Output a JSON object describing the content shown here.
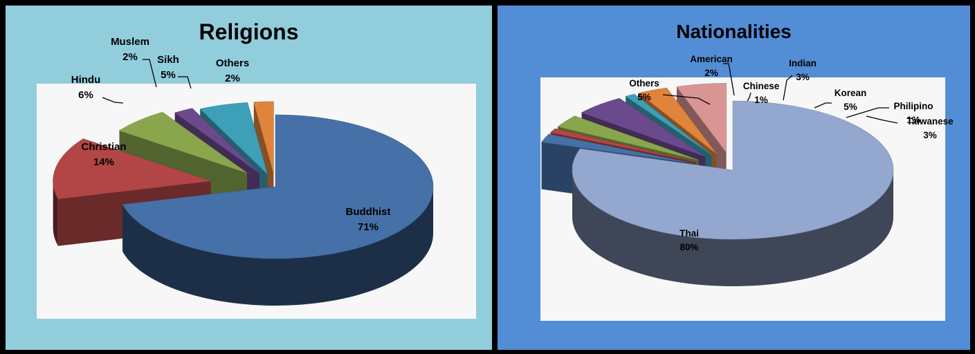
{
  "chart_data": [
    {
      "type": "pie",
      "title": "Religions",
      "categories": [
        "Buddhist",
        "Christian",
        "Hindu",
        "Muslem",
        "Sikh",
        "Others"
      ],
      "values": [
        71,
        14,
        6,
        2,
        5,
        2
      ],
      "value_labels": [
        "71%",
        "14%",
        "6%",
        "2%",
        "5%",
        "2%"
      ],
      "colors": [
        "#4670a8",
        "#b24646",
        "#89a64c",
        "#6a4a8c",
        "#3d9fb8",
        "#e0843c"
      ],
      "background": "#92cddc",
      "style": "3d-exploded"
    },
    {
      "type": "pie",
      "title": "Nationalities",
      "categories": [
        "Thai",
        "American",
        "Chinese",
        "Indian",
        "Korean",
        "Philipino",
        "Taiwanese",
        "Others"
      ],
      "values": [
        80,
        2,
        1,
        3,
        5,
        1,
        3,
        5
      ],
      "value_labels": [
        "80%",
        "2%",
        "1%",
        "3%",
        "5%",
        "1%",
        "3%",
        "5%"
      ],
      "colors": [
        "#93a7cf",
        "#4670a8",
        "#b24646",
        "#89a64c",
        "#6a4a8c",
        "#3d9fb8",
        "#e0843c",
        "#d99594"
      ],
      "background": "#538dd5",
      "style": "3d-exploded"
    }
  ]
}
